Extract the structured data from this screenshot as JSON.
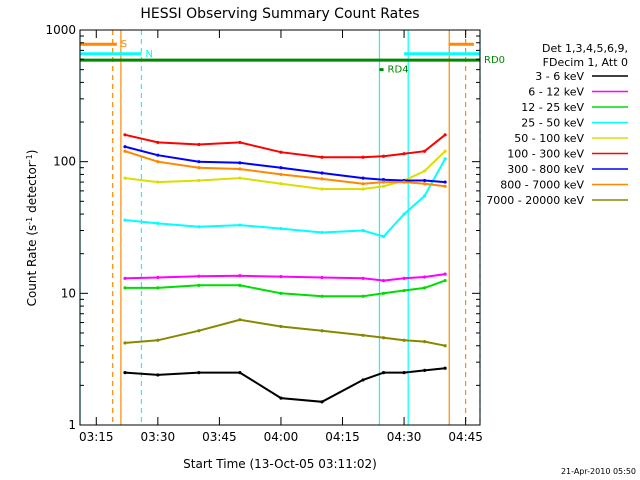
{
  "chart_data": {
    "type": "line",
    "title": "HESSI Observing Summary Count Rates",
    "xlabel": "Start Time (13-Oct-05 03:11:02)",
    "ylabel_parts": [
      "Count Rate (s",
      "-1",
      " detector",
      "-1",
      ")"
    ],
    "y_scale": "log",
    "xlim": [
      "03:11:02",
      "04:48:30"
    ],
    "ylim": [
      1,
      1000
    ],
    "x_ticks": [
      "03:15",
      "03:30",
      "03:45",
      "04:00",
      "04:15",
      "04:30",
      "04:45"
    ],
    "y_ticks": [
      "1",
      "10",
      "100",
      "1000"
    ],
    "legend": {
      "header": [
        "Det 1,3,4,5,6,9,",
        "FDecim 1, Att 0"
      ],
      "placement": "right"
    },
    "series": [
      {
        "name": "3 - 6 keV",
        "color": "#000000",
        "x": [
          "03:22",
          "03:30",
          "03:40",
          "03:50",
          "04:00",
          "04:10",
          "04:20",
          "04:25",
          "04:30",
          "04:35",
          "04:40"
        ],
        "values": [
          2.5,
          2.4,
          2.5,
          2.5,
          1.6,
          1.5,
          2.2,
          2.5,
          2.5,
          2.6,
          2.7
        ]
      },
      {
        "name": "6 - 12 keV",
        "color": "#ff00ff",
        "x": [
          "03:22",
          "03:30",
          "03:40",
          "03:50",
          "04:00",
          "04:10",
          "04:20",
          "04:25",
          "04:30",
          "04:35",
          "04:40"
        ],
        "values": [
          13.0,
          13.2,
          13.5,
          13.6,
          13.4,
          13.2,
          13.0,
          12.5,
          13.0,
          13.3,
          14.0
        ]
      },
      {
        "name": "12 - 25 keV",
        "color": "#00dd00",
        "x": [
          "03:22",
          "03:30",
          "03:40",
          "03:50",
          "04:00",
          "04:10",
          "04:20",
          "04:25",
          "04:30",
          "04:35",
          "04:40"
        ],
        "values": [
          11.0,
          11.0,
          11.5,
          11.5,
          10.0,
          9.5,
          9.5,
          10.0,
          10.5,
          11.0,
          12.5
        ]
      },
      {
        "name": "25 - 50 keV",
        "color": "#00ffff",
        "x": [
          "03:22",
          "03:30",
          "03:40",
          "03:50",
          "04:00",
          "04:10",
          "04:20",
          "04:25",
          "04:30",
          "04:35",
          "04:40"
        ],
        "values": [
          36,
          34,
          32,
          33,
          31,
          29,
          30,
          27,
          40,
          55,
          105
        ]
      },
      {
        "name": "50 - 100 keV",
        "color": "#dddd00",
        "x": [
          "03:22",
          "03:30",
          "03:40",
          "03:50",
          "04:00",
          "04:10",
          "04:20",
          "04:25",
          "04:30",
          "04:35",
          "04:40"
        ],
        "values": [
          75,
          70,
          72,
          75,
          68,
          62,
          62,
          65,
          72,
          85,
          120
        ]
      },
      {
        "name": "100 - 300 keV",
        "color": "#ff0000",
        "x": [
          "03:22",
          "03:30",
          "03:40",
          "03:50",
          "04:00",
          "04:10",
          "04:20",
          "04:25",
          "04:30",
          "04:35",
          "04:40"
        ],
        "values": [
          160,
          140,
          135,
          140,
          118,
          108,
          108,
          110,
          115,
          120,
          160
        ]
      },
      {
        "name": "300 - 800 keV",
        "color": "#0000ff",
        "x": [
          "03:22",
          "03:30",
          "03:40",
          "03:50",
          "04:00",
          "04:10",
          "04:20",
          "04:25",
          "04:30",
          "04:35",
          "04:40"
        ],
        "values": [
          130,
          112,
          100,
          98,
          90,
          82,
          75,
          73,
          72,
          72,
          70
        ]
      },
      {
        "name": "800 - 7000 keV",
        "color": "#ff8800",
        "x": [
          "03:22",
          "03:30",
          "03:40",
          "03:50",
          "04:00",
          "04:10",
          "04:20",
          "04:25",
          "04:30",
          "04:35",
          "04:40"
        ],
        "values": [
          120,
          100,
          90,
          88,
          80,
          74,
          68,
          70,
          70,
          68,
          65
        ]
      },
      {
        "name": "7000 - 20000 keV",
        "color": "#888800",
        "x": [
          "03:22",
          "03:30",
          "03:40",
          "03:50",
          "04:00",
          "04:10",
          "04:20",
          "04:25",
          "04:30",
          "04:35",
          "04:40"
        ],
        "values": [
          4.2,
          4.4,
          5.2,
          6.3,
          5.6,
          5.2,
          4.8,
          4.6,
          4.4,
          4.3,
          4.0
        ]
      }
    ],
    "flags": [
      {
        "label": "S",
        "color": "#ff8800",
        "x_start": "03:11:02",
        "x_end": "03:20",
        "value": 780
      },
      {
        "label": "",
        "color": "#ff8800",
        "x_start": "04:41",
        "x_end": "04:47",
        "value": 780
      },
      {
        "label": "N",
        "color": "#00ffff",
        "x_start": "03:11:02",
        "x_end": "03:26",
        "value": 660
      },
      {
        "label": "",
        "color": "#00ffff",
        "x_start": "04:30",
        "x_end": "04:48:30",
        "value": 660
      },
      {
        "label": "RD0",
        "color": "#008800",
        "x_start": "03:11:02",
        "x_end": "04:48:30",
        "value": 590
      },
      {
        "label": "RD4",
        "color": "#008800",
        "x_start": "04:24",
        "x_end": "04:25",
        "value": 500
      }
    ],
    "vertical_markers": [
      {
        "x": "03:11:02",
        "color": "#00ffff",
        "style": "solid"
      },
      {
        "x": "03:19",
        "color": "#ff8800",
        "style": "dashed"
      },
      {
        "x": "03:21",
        "color": "#ff8800",
        "style": "solid"
      },
      {
        "x": "03:26",
        "color": "#00ffff",
        "style": "dashed"
      },
      {
        "x": "04:24",
        "color": "#00ffff",
        "style": "solid"
      },
      {
        "x": "04:31",
        "color": "#00ffff",
        "style": "solid"
      },
      {
        "x": "04:41",
        "color": "#ff8800",
        "style": "solid"
      },
      {
        "x": "04:45",
        "color": "#ff8800",
        "style": "dashed"
      },
      {
        "x": "04:48:30",
        "color": "#00ffff",
        "style": "dashed"
      }
    ]
  },
  "footer": {
    "date": "21-Apr-2010 05:50"
  }
}
